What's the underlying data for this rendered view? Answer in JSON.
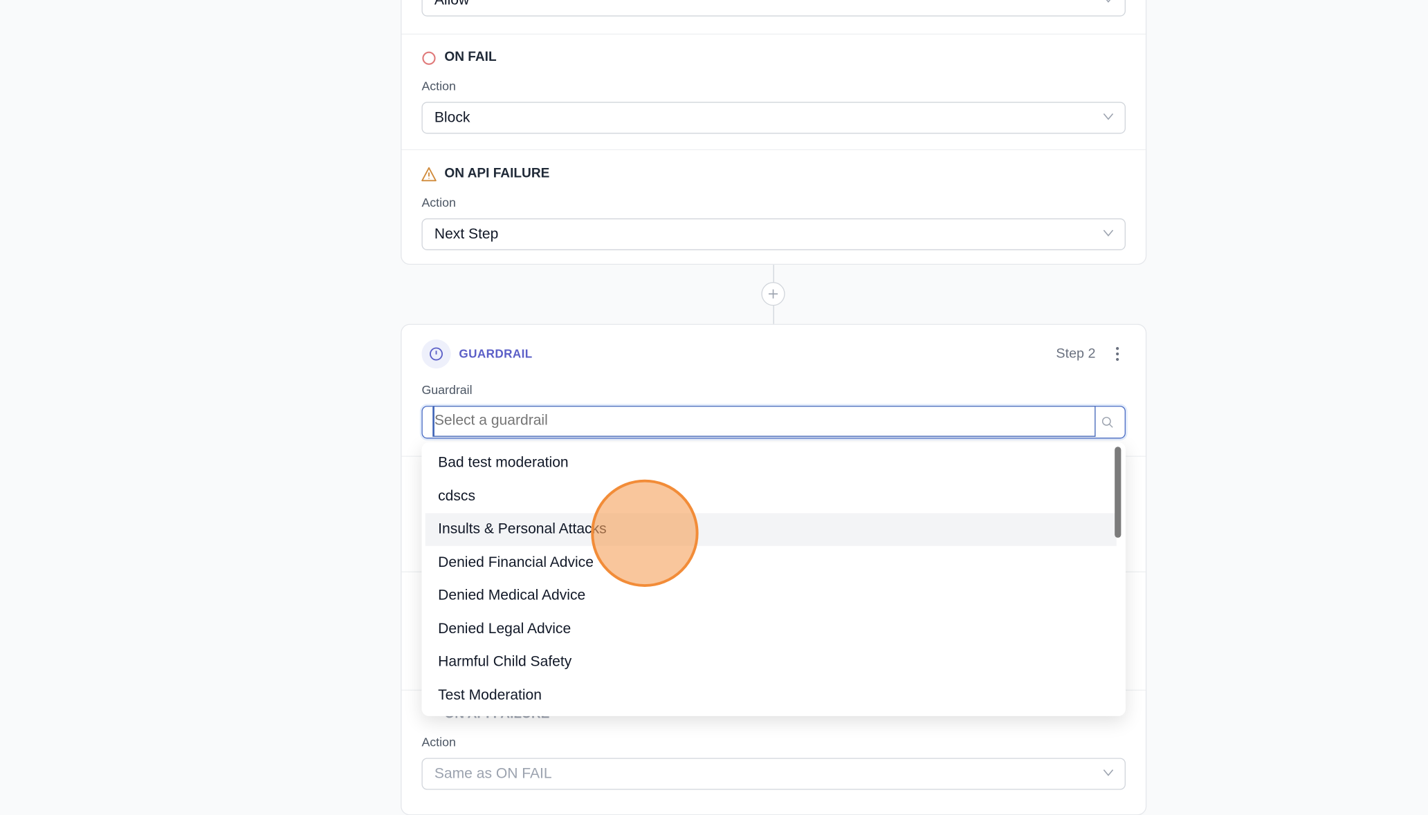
{
  "step1": {
    "top_select_value": "Allow",
    "on_fail": {
      "title": "ON FAIL",
      "action_label": "Action",
      "action_value": "Block"
    },
    "on_api_failure": {
      "title": "ON API FAILURE",
      "action_label": "Action",
      "action_value": "Next Step"
    }
  },
  "step2": {
    "type_label": "GUARDRAIL",
    "step_label": "Step 2",
    "guardrail_label": "Guardrail",
    "guardrail_placeholder": "Select a guardrail",
    "on_api_failure": {
      "title": "ON API FAILURE",
      "action_label": "Action",
      "action_placeholder": "Same as ON FAIL"
    }
  },
  "dropdown": {
    "options": [
      "Bad test moderation",
      "cdscs",
      "Insults & Personal Attacks",
      "Denied Financial Advice",
      "Denied Medical Advice",
      "Denied Legal Advice",
      "Harmful Child Safety",
      "Test Moderation"
    ],
    "hovered_index": 2
  },
  "colors": {
    "accent": "#5b5fc7",
    "fail": "#e07a7a",
    "warning": "#d08a3a",
    "cursor": "#f5a05a"
  }
}
